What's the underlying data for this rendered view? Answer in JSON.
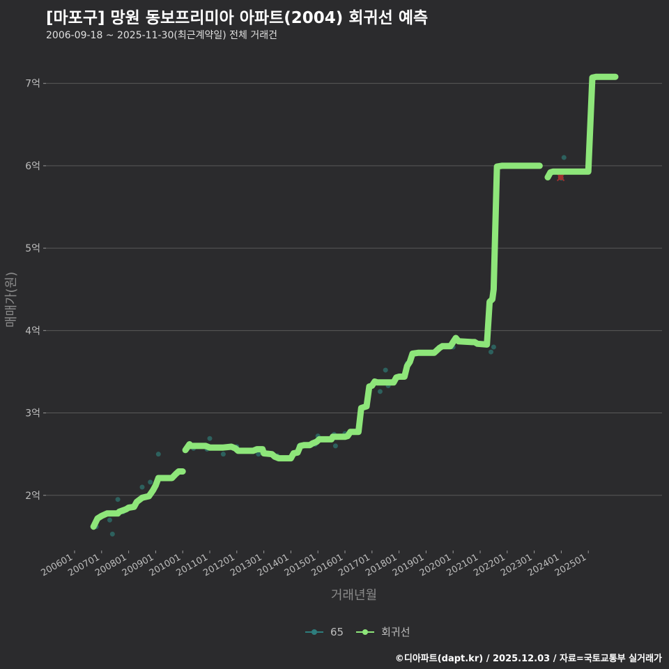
{
  "header": {
    "title": "[마포구] 망원 동보프리미아 아파트(2004) 회귀선 예측",
    "subtitle": "2006-09-18 ~ 2025-11-30(최근계약일) 전체 거래건"
  },
  "footer": {
    "credit": "©디아파트(dapt.kr) / 2025.12.03 / 자료=국토교통부 실거래가"
  },
  "legend": {
    "items": [
      {
        "label": "65",
        "color": "#2e7d7d"
      },
      {
        "label": "회귀선",
        "color": "#8ee67a"
      }
    ]
  },
  "colors": {
    "background": "#2b2b2d",
    "grid": "#5a5a5a",
    "line": "#8ee67a",
    "points": "#2e6f6a",
    "highlight": "#a03030"
  },
  "chart_data": {
    "type": "line",
    "title": "[마포구] 망원 동보프리미아 아파트(2004) 회귀선 예측",
    "xlabel": "거래년월",
    "ylabel": "매매가(원)",
    "x_tick_labels": [
      "200601",
      "200701",
      "200801",
      "200901",
      "201001",
      "201101",
      "201201",
      "201301",
      "201401",
      "201501",
      "201601",
      "201701",
      "201801",
      "201901",
      "202001",
      "202101",
      "202201",
      "202301",
      "202401",
      "202501"
    ],
    "y_tick_labels": [
      "2억",
      "3억",
      "4억",
      "5억",
      "6억",
      "7억"
    ],
    "ylim": [
      1.33,
      7.42
    ],
    "y_unit": "억",
    "series": [
      {
        "name": "회귀선",
        "segments": [
          [
            [
              2006.7,
              1.62
            ],
            [
              2006.85,
              1.72
            ],
            [
              2007.0,
              1.75
            ],
            [
              2007.2,
              1.78
            ],
            [
              2007.6,
              1.78
            ],
            [
              2007.65,
              1.8
            ],
            [
              2007.9,
              1.83
            ],
            [
              2008.0,
              1.85
            ],
            [
              2008.2,
              1.86
            ],
            [
              2008.3,
              1.92
            ],
            [
              2008.5,
              1.97
            ],
            [
              2008.75,
              1.99
            ],
            [
              2008.9,
              2.06
            ],
            [
              2009.0,
              2.12
            ],
            [
              2009.1,
              2.21
            ],
            [
              2009.2,
              2.21
            ],
            [
              2009.4,
              2.21
            ],
            [
              2009.6,
              2.21
            ],
            [
              2009.75,
              2.26
            ],
            [
              2009.85,
              2.29
            ],
            [
              2010.0,
              2.29
            ]
          ],
          [
            [
              2010.1,
              2.55
            ],
            [
              2010.25,
              2.62
            ],
            [
              2010.3,
              2.6
            ],
            [
              2010.7,
              2.6
            ],
            [
              2010.85,
              2.6
            ],
            [
              2011.0,
              2.58
            ],
            [
              2011.3,
              2.58
            ],
            [
              2011.5,
              2.58
            ],
            [
              2011.8,
              2.59
            ],
            [
              2011.95,
              2.57
            ],
            [
              2012.05,
              2.54
            ],
            [
              2012.5,
              2.54
            ],
            [
              2012.6,
              2.54
            ],
            [
              2012.75,
              2.56
            ],
            [
              2012.95,
              2.56
            ],
            [
              2013.0,
              2.51
            ],
            [
              2013.3,
              2.5
            ],
            [
              2013.4,
              2.47
            ],
            [
              2013.55,
              2.45
            ],
            [
              2013.8,
              2.45
            ],
            [
              2014.0,
              2.45
            ],
            [
              2014.1,
              2.51
            ],
            [
              2014.25,
              2.52
            ],
            [
              2014.35,
              2.6
            ],
            [
              2014.5,
              2.61
            ],
            [
              2014.7,
              2.61
            ],
            [
              2014.8,
              2.63
            ],
            [
              2014.95,
              2.65
            ],
            [
              2015.05,
              2.68
            ],
            [
              2015.5,
              2.68
            ],
            [
              2015.55,
              2.71
            ],
            [
              2016.0,
              2.71
            ],
            [
              2016.1,
              2.72
            ],
            [
              2016.2,
              2.77
            ],
            [
              2016.5,
              2.77
            ],
            [
              2016.6,
              3.06
            ],
            [
              2016.8,
              3.08
            ],
            [
              2016.9,
              3.32
            ],
            [
              2017.0,
              3.33
            ],
            [
              2017.1,
              3.38
            ],
            [
              2017.2,
              3.37
            ],
            [
              2017.8,
              3.37
            ],
            [
              2017.9,
              3.43
            ],
            [
              2018.0,
              3.44
            ],
            [
              2018.2,
              3.44
            ],
            [
              2018.3,
              3.57
            ],
            [
              2018.4,
              3.62
            ],
            [
              2018.5,
              3.72
            ],
            [
              2018.7,
              3.73
            ],
            [
              2019.3,
              3.73
            ],
            [
              2019.5,
              3.79
            ],
            [
              2019.6,
              3.81
            ],
            [
              2019.9,
              3.81
            ],
            [
              2020.0,
              3.86
            ],
            [
              2020.1,
              3.91
            ],
            [
              2020.2,
              3.87
            ],
            [
              2020.7,
              3.86
            ],
            [
              2020.8,
              3.86
            ],
            [
              2020.9,
              3.84
            ],
            [
              2021.25,
              3.83
            ],
            [
              2021.35,
              4.35
            ],
            [
              2021.45,
              4.38
            ],
            [
              2021.5,
              4.5
            ],
            [
              2021.62,
              5.99
            ],
            [
              2021.8,
              6.0
            ],
            [
              2022.0,
              6.0
            ],
            [
              2023.2,
              6.0
            ]
          ],
          [
            [
              2023.5,
              5.86
            ],
            [
              2023.6,
              5.92
            ],
            [
              2023.7,
              5.93
            ],
            [
              2024.6,
              5.93
            ],
            [
              2025.0,
              5.93
            ],
            [
              2025.15,
              7.07
            ],
            [
              2025.3,
              7.08
            ],
            [
              2026.0,
              7.08
            ]
          ]
        ]
      },
      {
        "name": "65",
        "points": [
          [
            2006.8,
            1.62
          ],
          [
            2007.3,
            1.7
          ],
          [
            2007.4,
            1.53
          ],
          [
            2007.6,
            1.95
          ],
          [
            2007.8,
            1.8
          ],
          [
            2008.1,
            1.85
          ],
          [
            2008.5,
            2.1
          ],
          [
            2008.8,
            2.16
          ],
          [
            2009.1,
            2.5
          ],
          [
            2010.0,
            2.28
          ],
          [
            2010.4,
            2.57
          ],
          [
            2010.9,
            2.56
          ],
          [
            2011.0,
            2.69
          ],
          [
            2011.5,
            2.5
          ],
          [
            2012.0,
            2.59
          ],
          [
            2012.8,
            2.5
          ],
          [
            2013.5,
            2.48
          ],
          [
            2014.3,
            2.6
          ],
          [
            2014.9,
            2.62
          ],
          [
            2015.0,
            2.72
          ],
          [
            2015.6,
            2.74
          ],
          [
            2015.65,
            2.6
          ],
          [
            2016.0,
            2.75
          ],
          [
            2017.3,
            3.26
          ],
          [
            2017.5,
            3.52
          ],
          [
            2017.6,
            3.33
          ],
          [
            2018.3,
            3.6
          ],
          [
            2019.8,
            3.82
          ],
          [
            2020.0,
            3.8
          ],
          [
            2021.3,
            3.97
          ],
          [
            2021.4,
            3.74
          ],
          [
            2021.5,
            3.8
          ],
          [
            2024.1,
            6.1
          ],
          [
            2024.0,
            5.85
          ]
        ],
        "highlight_point": [
          2023.98,
          5.86
        ]
      }
    ]
  }
}
